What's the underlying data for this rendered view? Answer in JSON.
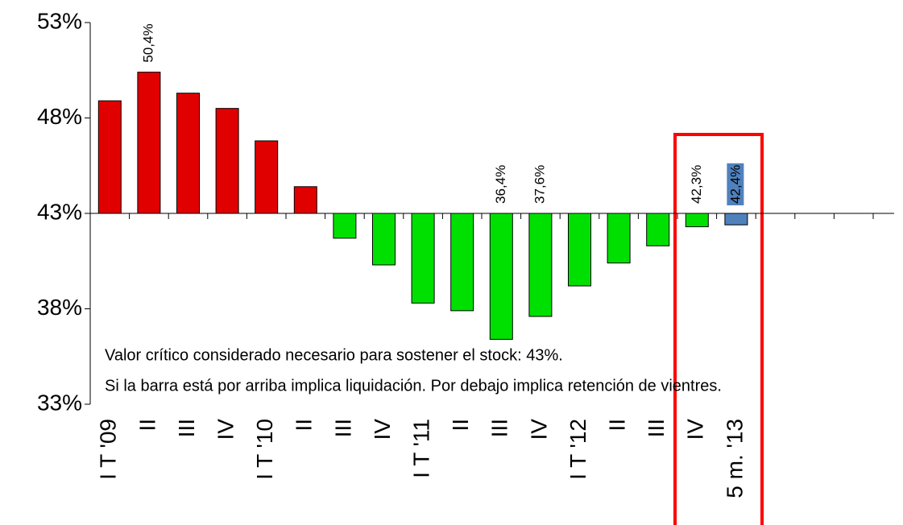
{
  "chart_data": {
    "type": "bar",
    "categories": [
      "I T '09",
      "II",
      "III",
      "IV",
      "I T '10",
      "II",
      "III",
      "IV",
      "I T '11",
      "II",
      "III",
      "IV",
      "I T '12",
      "II",
      "III",
      "IV",
      "5 m. '13",
      null,
      null,
      null
    ],
    "values": [
      48.9,
      50.4,
      49.3,
      48.5,
      46.8,
      44.4,
      41.7,
      40.3,
      38.3,
      37.9,
      36.4,
      37.6,
      39.2,
      40.4,
      41.3,
      42.3,
      42.4,
      null,
      null,
      null
    ],
    "value_labels": [
      null,
      "50,4%",
      null,
      null,
      null,
      null,
      null,
      null,
      null,
      null,
      "36,4%",
      "37,6%",
      null,
      null,
      null,
      "42,3%",
      "42,4%",
      null,
      null,
      null
    ],
    "colors": [
      "#e00000",
      "#e00000",
      "#e00000",
      "#e00000",
      "#e00000",
      "#e00000",
      "#00e000",
      "#00e000",
      "#00e000",
      "#00e000",
      "#00e000",
      "#00e000",
      "#00e000",
      "#00e000",
      "#00e000",
      "#00e000",
      "#4f81bd",
      null,
      null,
      null
    ],
    "baseline": 43,
    "ylim": [
      33,
      53
    ],
    "yticks": [
      {
        "value": 33,
        "label": "33%"
      },
      {
        "value": 38,
        "label": "38%"
      },
      {
        "value": 43,
        "label": "43%"
      },
      {
        "value": 48,
        "label": "48%"
      },
      {
        "value": 53,
        "label": "53%"
      }
    ],
    "annotations": [
      "Valor crítico considerado necesario para sostener el stock: 43%.",
      "Si la barra está por arriba implica liquidación. Por debajo implica retención de vientres."
    ]
  }
}
